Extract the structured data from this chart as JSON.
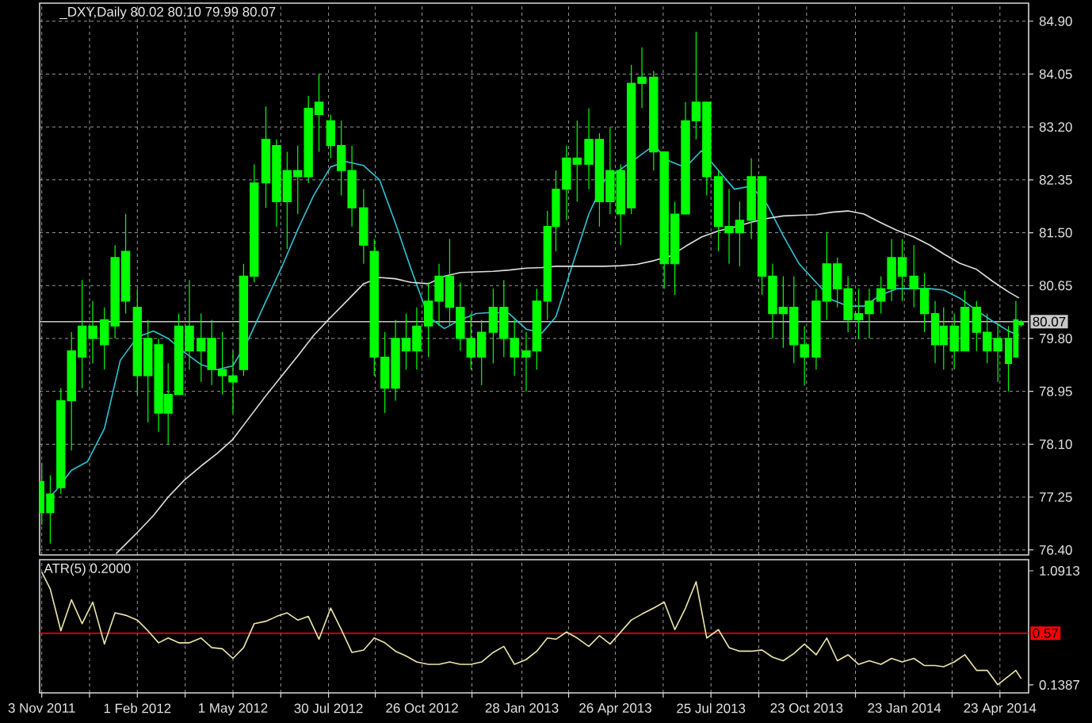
{
  "chart_data": [
    {
      "type": "candlestick",
      "title": "_DXY,Daily 80.02 80.10 79.99 80.07",
      "color": "#00ff00",
      "x": [
        "2011-11-03",
        "2011-11-11",
        "2011-11-21",
        "2011-12-01",
        "2011-12-11",
        "2011-12-21",
        "2012-01-01",
        "2012-01-11",
        "2012-01-21",
        "2012-02-01",
        "2012-02-11",
        "2012-02-21",
        "2012-03-01",
        "2012-03-11",
        "2012-03-21",
        "2012-04-01",
        "2012-04-11",
        "2012-04-21",
        "2012-05-01",
        "2012-05-11",
        "2012-05-21",
        "2012-06-01",
        "2012-06-11",
        "2012-06-21",
        "2012-07-01",
        "2012-07-11",
        "2012-07-21",
        "2012-08-01",
        "2012-08-11",
        "2012-08-21",
        "2012-09-01",
        "2012-09-11",
        "2012-09-21",
        "2012-10-01",
        "2012-10-11",
        "2012-10-21",
        "2012-11-01",
        "2012-11-11",
        "2012-11-21",
        "2012-12-01",
        "2012-12-11",
        "2012-12-21",
        "2013-01-01",
        "2013-01-11",
        "2013-01-21",
        "2013-02-01",
        "2013-02-11",
        "2013-02-21",
        "2013-03-01",
        "2013-03-11",
        "2013-03-21",
        "2013-04-01",
        "2013-04-11",
        "2013-04-21",
        "2013-05-01",
        "2013-05-11",
        "2013-05-21",
        "2013-06-01",
        "2013-06-11",
        "2013-06-21",
        "2013-07-01",
        "2013-07-11",
        "2013-07-21",
        "2013-08-01",
        "2013-08-11",
        "2013-08-21",
        "2013-09-01",
        "2013-09-11",
        "2013-09-21",
        "2013-10-01",
        "2013-10-11",
        "2013-10-21",
        "2013-11-01",
        "2013-11-11",
        "2013-11-21",
        "2013-12-01",
        "2013-12-11",
        "2013-12-21",
        "2014-01-01",
        "2014-01-11",
        "2014-01-21",
        "2014-02-01",
        "2014-02-11",
        "2014-02-21",
        "2014-03-01",
        "2014-03-11",
        "2014-03-21",
        "2014-04-01",
        "2014-04-11",
        "2014-04-21",
        "2014-05-01",
        "2014-05-08",
        "2014-05-13"
      ],
      "ohlc": [
        [
          77.5,
          77.8,
          76.8,
          77.0
        ],
        [
          77.0,
          77.6,
          76.5,
          77.3
        ],
        [
          77.4,
          79.0,
          77.3,
          78.8
        ],
        [
          78.8,
          79.9,
          78.0,
          79.6
        ],
        [
          79.5,
          80.74,
          79.0,
          80.0
        ],
        [
          80.0,
          80.4,
          79.4,
          79.8
        ],
        [
          79.7,
          80.3,
          79.3,
          80.1
        ],
        [
          80.0,
          81.3,
          79.8,
          81.1
        ],
        [
          81.2,
          81.8,
          80.2,
          80.4
        ],
        [
          80.3,
          80.6,
          78.9,
          79.2
        ],
        [
          79.2,
          80.1,
          78.45,
          79.8
        ],
        [
          79.7,
          79.8,
          78.3,
          78.6
        ],
        [
          78.6,
          79.4,
          78.1,
          78.9
        ],
        [
          78.9,
          80.2,
          78.9,
          80.0
        ],
        [
          80.0,
          80.74,
          79.3,
          79.6
        ],
        [
          79.6,
          80.2,
          79.1,
          79.8
        ],
        [
          79.8,
          80.1,
          79.05,
          79.3
        ],
        [
          79.3,
          79.9,
          78.9,
          79.2
        ],
        [
          79.1,
          79.6,
          78.6,
          79.2
        ],
        [
          79.3,
          81.0,
          79.2,
          80.8
        ],
        [
          80.8,
          82.6,
          80.7,
          82.3
        ],
        [
          82.3,
          83.53,
          81.9,
          83.0
        ],
        [
          82.9,
          83.0,
          81.6,
          82.0
        ],
        [
          82.0,
          82.8,
          81.24,
          82.5
        ],
        [
          82.5,
          82.9,
          81.8,
          82.4
        ],
        [
          82.4,
          83.7,
          82.3,
          83.5
        ],
        [
          83.4,
          84.05,
          82.8,
          83.6
        ],
        [
          83.3,
          83.4,
          82.7,
          82.9
        ],
        [
          82.9,
          83.3,
          82.1,
          82.5
        ],
        [
          82.5,
          82.9,
          81.6,
          81.9
        ],
        [
          81.9,
          82.2,
          81.0,
          81.3
        ],
        [
          81.2,
          81.4,
          79.2,
          79.5
        ],
        [
          79.5,
          79.9,
          78.6,
          79.0
        ],
        [
          79.0,
          80.1,
          78.8,
          79.8
        ],
        [
          79.8,
          80.2,
          79.3,
          79.6
        ],
        [
          79.6,
          80.3,
          79.3,
          80.0
        ],
        [
          80.0,
          80.7,
          79.5,
          80.4
        ],
        [
          80.4,
          81.0,
          80.0,
          80.8
        ],
        [
          80.8,
          81.4,
          80.0,
          80.3
        ],
        [
          80.3,
          80.7,
          79.6,
          79.8
        ],
        [
          79.8,
          80.2,
          79.3,
          79.5
        ],
        [
          79.5,
          80.1,
          79.05,
          79.9
        ],
        [
          79.9,
          80.6,
          79.4,
          80.3
        ],
        [
          80.3,
          80.74,
          79.5,
          79.8
        ],
        [
          79.8,
          80.1,
          79.2,
          79.5
        ],
        [
          79.5,
          79.9,
          78.95,
          79.6
        ],
        [
          79.6,
          80.6,
          79.3,
          80.4
        ],
        [
          80.4,
          81.85,
          80.1,
          81.6
        ],
        [
          81.6,
          82.5,
          81.2,
          82.2
        ],
        [
          82.2,
          82.9,
          81.7,
          82.7
        ],
        [
          82.7,
          83.3,
          82.0,
          82.6
        ],
        [
          82.6,
          83.5,
          82.2,
          83.0
        ],
        [
          83.0,
          83.1,
          81.6,
          82.0
        ],
        [
          82.0,
          83.2,
          81.8,
          82.5
        ],
        [
          82.5,
          82.6,
          81.3,
          81.8
        ],
        [
          81.9,
          84.2,
          81.8,
          83.9
        ],
        [
          83.9,
          84.48,
          83.5,
          84.0
        ],
        [
          84.0,
          84.1,
          82.5,
          82.8
        ],
        [
          82.8,
          82.8,
          80.6,
          81.0
        ],
        [
          81.0,
          82.0,
          80.5,
          81.8
        ],
        [
          81.8,
          83.6,
          81.8,
          83.3
        ],
        [
          83.3,
          84.73,
          83.0,
          83.6
        ],
        [
          83.6,
          83.6,
          82.1,
          82.4
        ],
        [
          82.4,
          82.5,
          81.2,
          81.6
        ],
        [
          81.6,
          82.2,
          81.0,
          81.5
        ],
        [
          81.5,
          82.0,
          80.96,
          81.7
        ],
        [
          81.7,
          82.7,
          81.4,
          82.4
        ],
        [
          82.4,
          82.4,
          80.5,
          80.8
        ],
        [
          80.8,
          81.0,
          79.8,
          80.2
        ],
        [
          80.2,
          80.8,
          79.65,
          80.3
        ],
        [
          80.3,
          80.8,
          79.4,
          79.7
        ],
        [
          79.7,
          80.0,
          79.04,
          79.5
        ],
        [
          79.5,
          80.6,
          79.3,
          80.4
        ],
        [
          80.4,
          81.5,
          80.1,
          81.0
        ],
        [
          81.0,
          81.1,
          80.3,
          80.6
        ],
        [
          80.6,
          80.8,
          79.9,
          80.1
        ],
        [
          80.1,
          80.6,
          79.8,
          80.2
        ],
        [
          80.2,
          80.6,
          79.8,
          80.4
        ],
        [
          80.4,
          80.8,
          80.2,
          80.6
        ],
        [
          80.6,
          81.4,
          80.4,
          81.1
        ],
        [
          81.1,
          81.4,
          80.4,
          80.8
        ],
        [
          80.8,
          81.3,
          80.3,
          80.6
        ],
        [
          80.6,
          80.85,
          79.9,
          80.2
        ],
        [
          80.2,
          80.4,
          79.4,
          79.7
        ],
        [
          79.7,
          80.3,
          79.3,
          80.0
        ],
        [
          80.0,
          80.2,
          79.3,
          79.6
        ],
        [
          79.6,
          80.57,
          79.6,
          80.3
        ],
        [
          80.3,
          80.4,
          79.6,
          79.9
        ],
        [
          79.9,
          80.2,
          79.4,
          79.6
        ],
        [
          79.6,
          80.05,
          79.1,
          79.8
        ],
        [
          79.8,
          80.0,
          78.95,
          79.4
        ],
        [
          79.5,
          80.4,
          79.5,
          80.1
        ],
        [
          80.02,
          80.1,
          79.99,
          80.07
        ]
      ],
      "series": [
        {
          "type": "line",
          "color": "#2ec4d6",
          "x": [
            "2011-11-11",
            "2011-11-16",
            "2011-12-01",
            "2011-12-16",
            "2012-01-01",
            "2012-01-16",
            "2012-02-01",
            "2012-02-16",
            "2012-03-01",
            "2012-03-16",
            "2012-04-01",
            "2012-04-16",
            "2012-05-01",
            "2012-05-16",
            "2012-06-01",
            "2012-06-16",
            "2012-07-01",
            "2012-07-16",
            "2012-08-01",
            "2012-08-16",
            "2012-09-01",
            "2012-09-16",
            "2012-10-01",
            "2012-10-16",
            "2012-11-01",
            "2012-11-16",
            "2012-12-01",
            "2012-12-16",
            "2013-01-01",
            "2013-01-16",
            "2013-02-01",
            "2013-02-16",
            "2013-03-01",
            "2013-03-16",
            "2013-04-01",
            "2013-04-16",
            "2013-05-01",
            "2013-05-16",
            "2013-06-01",
            "2013-06-16",
            "2013-07-01",
            "2013-07-16",
            "2013-08-01",
            "2013-08-16",
            "2013-09-01",
            "2013-09-16",
            "2013-10-01",
            "2013-10-16",
            "2013-11-01",
            "2013-11-16",
            "2013-12-01",
            "2013-12-16",
            "2014-01-01",
            "2014-01-16",
            "2014-02-01",
            "2014-02-16",
            "2014-03-01",
            "2014-03-16",
            "2014-04-01",
            "2014-04-16",
            "2014-05-01",
            "2014-05-11"
          ],
          "values": [
            77.26,
            77.35,
            77.68,
            77.82,
            78.35,
            79.45,
            79.82,
            79.92,
            79.8,
            79.58,
            79.38,
            79.3,
            79.36,
            79.8,
            80.4,
            80.95,
            81.55,
            82.1,
            82.56,
            82.64,
            82.58,
            82.35,
            81.65,
            80.9,
            80.15,
            79.96,
            80.1,
            80.2,
            80.22,
            80.2,
            79.95,
            79.89,
            80.15,
            80.95,
            81.8,
            82.35,
            82.52,
            82.7,
            82.9,
            82.65,
            82.55,
            82.82,
            82.5,
            82.2,
            82.25,
            81.95,
            81.45,
            81.0,
            80.7,
            80.42,
            80.32,
            80.32,
            80.5,
            80.6,
            80.6,
            80.6,
            80.58,
            80.45,
            80.25,
            80.08,
            79.92,
            79.85
          ]
        },
        {
          "type": "line",
          "color": "#e0e0e0",
          "x": [
            "2012-01-12",
            "2012-02-01",
            "2012-02-16",
            "2012-03-01",
            "2012-03-16",
            "2012-04-01",
            "2012-04-16",
            "2012-05-01",
            "2012-05-16",
            "2012-06-01",
            "2012-06-16",
            "2012-07-01",
            "2012-07-16",
            "2012-08-01",
            "2012-08-16",
            "2012-09-01",
            "2012-09-16",
            "2012-10-01",
            "2012-10-16",
            "2012-11-01",
            "2012-11-16",
            "2012-12-01",
            "2012-12-16",
            "2013-01-01",
            "2013-01-16",
            "2013-02-01",
            "2013-02-16",
            "2013-03-01",
            "2013-03-16",
            "2013-04-01",
            "2013-04-16",
            "2013-05-01",
            "2013-05-16",
            "2013-06-01",
            "2013-06-16",
            "2013-07-01",
            "2013-07-16",
            "2013-08-01",
            "2013-08-16",
            "2013-09-01",
            "2013-09-16",
            "2013-10-01",
            "2013-10-16",
            "2013-11-01",
            "2013-11-16",
            "2013-12-01",
            "2013-12-16",
            "2014-01-01",
            "2014-01-16",
            "2014-02-01",
            "2014-02-16",
            "2014-03-01",
            "2014-03-16",
            "2014-04-01",
            "2014-04-16",
            "2014-05-01",
            "2014-05-11"
          ],
          "values": [
            76.34,
            76.68,
            76.95,
            77.25,
            77.52,
            77.75,
            77.95,
            78.18,
            78.52,
            78.88,
            79.2,
            79.52,
            79.85,
            80.14,
            80.4,
            80.68,
            80.78,
            80.76,
            80.7,
            80.68,
            80.8,
            80.86,
            80.87,
            80.88,
            80.9,
            80.93,
            80.94,
            80.96,
            80.96,
            80.96,
            80.96,
            80.97,
            80.99,
            81.05,
            81.12,
            81.28,
            81.43,
            81.53,
            81.59,
            81.67,
            81.73,
            81.77,
            81.78,
            81.79,
            81.83,
            81.85,
            81.8,
            81.66,
            81.54,
            81.43,
            81.3,
            81.16,
            81.01,
            80.91,
            80.72,
            80.55,
            80.45
          ]
        }
      ],
      "xlim": [
        "2011-11-01",
        "2014-05-20"
      ],
      "ylim": [
        76.32,
        85.19
      ],
      "xticks": [
        {
          "value": "2011-11-03",
          "label": null
        },
        {
          "value": "2011-12-18",
          "label": null
        },
        {
          "value": "2012-02-01",
          "label": null
        },
        {
          "value": "2012-03-17",
          "label": null
        },
        {
          "value": "2012-05-01",
          "label": null
        },
        {
          "value": "2012-06-15",
          "label": null
        },
        {
          "value": "2012-07-30",
          "label": null
        },
        {
          "value": "2012-09-12",
          "label": null
        },
        {
          "value": "2012-10-26",
          "label": null
        },
        {
          "value": "2012-12-12",
          "label": null
        },
        {
          "value": "2013-01-28",
          "label": null
        },
        {
          "value": "2013-03-13",
          "label": null
        },
        {
          "value": "2013-04-26",
          "label": null
        },
        {
          "value": "2013-06-10",
          "label": null
        },
        {
          "value": "2013-07-25",
          "label": null
        },
        {
          "value": "2013-09-08",
          "label": null
        },
        {
          "value": "2013-10-23",
          "label": null
        },
        {
          "value": "2013-12-08",
          "label": null
        },
        {
          "value": "2014-01-23",
          "label": null
        },
        {
          "value": "2014-03-09",
          "label": null
        },
        {
          "value": "2014-04-23",
          "label": null
        }
      ],
      "yticks": [
        {
          "value": 76.4,
          "label": "76.40"
        },
        77.25,
        {
          "value": 78.1,
          "label": "78.10"
        },
        78.95,
        {
          "value": 79.8,
          "label": "79.80"
        },
        80.65,
        {
          "value": 81.5,
          "label": "81.50"
        },
        82.35,
        {
          "value": 83.2,
          "label": "83.20"
        },
        84.05,
        {
          "value": 84.9,
          "label": "84.90"
        }
      ],
      "grid": true,
      "tick_labels": "y",
      "ref_lines": [
        {
          "axis": "y",
          "value": 80.07,
          "label": "80.07",
          "color": "#c8c8c8"
        }
      ]
    },
    {
      "type": "line",
      "title": "ATR(5) 0.2000",
      "x": [
        "2011-11-03",
        "2011-11-11",
        "2011-11-21",
        "2011-12-01",
        "2011-12-11",
        "2011-12-21",
        "2012-01-01",
        "2012-01-11",
        "2012-01-21",
        "2012-02-01",
        "2012-02-11",
        "2012-02-21",
        "2012-03-01",
        "2012-03-11",
        "2012-03-21",
        "2012-04-01",
        "2012-04-11",
        "2012-04-21",
        "2012-05-01",
        "2012-05-11",
        "2012-05-21",
        "2012-06-01",
        "2012-06-11",
        "2012-06-21",
        "2012-07-01",
        "2012-07-11",
        "2012-07-21",
        "2012-08-01",
        "2012-08-11",
        "2012-08-21",
        "2012-09-01",
        "2012-09-11",
        "2012-09-21",
        "2012-10-01",
        "2012-10-11",
        "2012-10-21",
        "2012-11-01",
        "2012-11-11",
        "2012-11-21",
        "2012-12-01",
        "2012-12-11",
        "2012-12-21",
        "2013-01-01",
        "2013-01-11",
        "2013-01-21",
        "2013-02-01",
        "2013-02-11",
        "2013-02-21",
        "2013-03-01",
        "2013-03-11",
        "2013-03-21",
        "2013-04-01",
        "2013-04-11",
        "2013-04-21",
        "2013-05-01",
        "2013-05-11",
        "2013-05-21",
        "2013-06-01",
        "2013-06-11",
        "2013-06-21",
        "2013-07-01",
        "2013-07-11",
        "2013-07-21",
        "2013-08-01",
        "2013-08-11",
        "2013-08-21",
        "2013-09-01",
        "2013-09-11",
        "2013-09-21",
        "2013-10-01",
        "2013-10-11",
        "2013-10-21",
        "2013-11-01",
        "2013-11-11",
        "2013-11-21",
        "2013-12-01",
        "2013-12-11",
        "2013-12-21",
        "2014-01-01",
        "2014-01-11",
        "2014-01-21",
        "2014-02-01",
        "2014-02-11",
        "2014-02-21",
        "2014-03-01",
        "2014-03-11",
        "2014-03-21",
        "2014-04-01",
        "2014-04-11",
        "2014-04-21",
        "2014-05-01",
        "2014-05-08",
        "2014-05-13"
      ],
      "series": [
        {
          "color": "#eee8aa",
          "values": [
            1.08,
            0.94,
            0.59,
            0.85,
            0.65,
            0.83,
            0.48,
            0.74,
            0.72,
            0.68,
            0.59,
            0.49,
            0.53,
            0.49,
            0.49,
            0.53,
            0.45,
            0.44,
            0.36,
            0.45,
            0.65,
            0.67,
            0.71,
            0.74,
            0.68,
            0.71,
            0.52,
            0.78,
            0.6,
            0.41,
            0.43,
            0.53,
            0.49,
            0.42,
            0.38,
            0.33,
            0.31,
            0.31,
            0.33,
            0.31,
            0.31,
            0.33,
            0.41,
            0.46,
            0.31,
            0.35,
            0.42,
            0.53,
            0.52,
            0.58,
            0.53,
            0.46,
            0.55,
            0.48,
            0.58,
            0.68,
            0.73,
            0.78,
            0.83,
            0.6,
            0.78,
            1.0,
            0.53,
            0.6,
            0.45,
            0.42,
            0.42,
            0.43,
            0.37,
            0.34,
            0.4,
            0.48,
            0.39,
            0.53,
            0.34,
            0.39,
            0.31,
            0.34,
            0.31,
            0.36,
            0.33,
            0.36,
            0.3,
            0.3,
            0.29,
            0.33,
            0.39,
            0.26,
            0.26,
            0.14,
            0.21,
            0.26,
            0.19
          ]
        }
      ],
      "xlim": [
        "2011-11-01",
        "2014-05-20"
      ],
      "ylim": [
        0.072,
        1.184
      ],
      "xticks": [
        {
          "value": "2011-11-03",
          "label": "3 Nov 2011"
        },
        {
          "value": "2011-12-18",
          "label": null
        },
        {
          "value": "2012-02-01",
          "label": "1 Feb 2012"
        },
        {
          "value": "2012-03-17",
          "label": null
        },
        {
          "value": "2012-05-01",
          "label": "1 May 2012"
        },
        {
          "value": "2012-06-15",
          "label": null
        },
        {
          "value": "2012-07-30",
          "label": "30 Jul 2012"
        },
        {
          "value": "2012-09-12",
          "label": null
        },
        {
          "value": "2012-10-26",
          "label": "26 Oct 2012"
        },
        {
          "value": "2012-12-12",
          "label": null
        },
        {
          "value": "2013-01-28",
          "label": "28 Jan 2013"
        },
        {
          "value": "2013-03-13",
          "label": null
        },
        {
          "value": "2013-04-26",
          "label": "26 Apr 2013"
        },
        {
          "value": "2013-06-10",
          "label": null
        },
        {
          "value": "2013-07-25",
          "label": "25 Jul 2013"
        },
        {
          "value": "2013-09-08",
          "label": null
        },
        {
          "value": "2013-10-23",
          "label": "23 Oct 2013"
        },
        {
          "value": "2013-12-08",
          "label": null
        },
        {
          "value": "2014-01-23",
          "label": "23 Jan 2014"
        },
        {
          "value": "2014-03-09",
          "label": null
        },
        {
          "value": "2014-04-23",
          "label": "23 Apr 2014"
        }
      ],
      "yticks": [
        1.0913,
        0.1387
      ],
      "grid": "x",
      "ref_lines": [
        {
          "axis": "y",
          "value": 0.57,
          "label": "0.57",
          "color": "#ff0000"
        }
      ]
    }
  ]
}
